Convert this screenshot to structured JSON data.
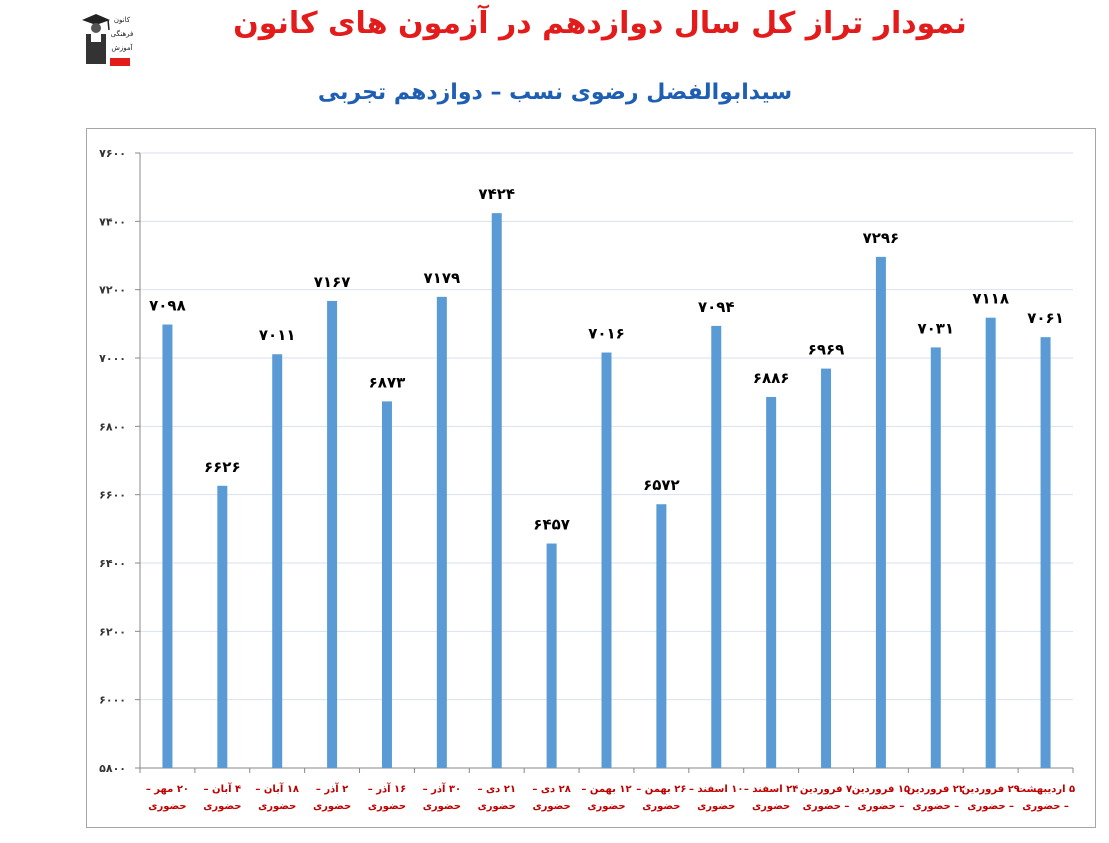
{
  "header": {
    "title": "نمودار تراز کل سال دوازدهم در آزمون های کانون",
    "subtitle": "سیدابوالفضل رضوی نسب – دوازدهم تجربی"
  },
  "logo": {
    "icon": "graduate-logo-icon",
    "texts": [
      "کانون",
      "فرهنگی",
      "آموزش"
    ]
  },
  "colors": {
    "title": "#e31b1b",
    "subtitle": "#1e5fb4",
    "bar": "#5b9bd5",
    "xlabel": "#c00000",
    "grid": "#d9e1ee"
  },
  "chart_data": {
    "type": "bar",
    "categories": [
      [
        "۲۰ مهر –",
        "حضوری"
      ],
      [
        "۴ آبان –",
        "حضوری"
      ],
      [
        "۱۸ آبان –",
        "حضوری"
      ],
      [
        "۲ آذر –",
        "حضوری"
      ],
      [
        "۱۶ آذر –",
        "حضوری"
      ],
      [
        "۳۰ آذر –",
        "حضوری"
      ],
      [
        "۲۱ دی –",
        "حضوری"
      ],
      [
        "۲۸ دی –",
        "حضوری"
      ],
      [
        "۱۲ بهمن –",
        "حضوری"
      ],
      [
        "۲۶ بهمن –",
        "حضوری"
      ],
      [
        "۱۰ اسفند –",
        "حضوری"
      ],
      [
        "۲۴ اسفند –",
        "حضوری"
      ],
      [
        "۷ فروردین",
        "– حضوری"
      ],
      [
        "۱۵ فروردین",
        "– حضوری"
      ],
      [
        "۲۲ فروردین",
        "– حضوری"
      ],
      [
        "۲۹ فروردین",
        "– حضوری"
      ],
      [
        "۵ اردیبهشت",
        "– حضوری"
      ]
    ],
    "values": [
      7098,
      6626,
      7011,
      7167,
      6873,
      7179,
      7424,
      6457,
      7016,
      6572,
      7094,
      6886,
      6969,
      7296,
      7031,
      7118,
      7061
    ],
    "value_labels": [
      "۷۰۹۸",
      "۶۶۲۶",
      "۷۰۱۱",
      "۷۱۶۷",
      "۶۸۷۳",
      "۷۱۷۹",
      "۷۴۲۴",
      "۶۴۵۷",
      "۷۰۱۶",
      "۶۵۷۲",
      "۷۰۹۴",
      "۶۸۸۶",
      "۶۹۶۹",
      "۷۲۹۶",
      "۷۰۳۱",
      "۷۱۱۸",
      "۷۰۶۱"
    ],
    "ylim": [
      5800,
      7600
    ],
    "yticks": [
      5800,
      6000,
      6200,
      6400,
      6600,
      6800,
      7000,
      7200,
      7400,
      7600
    ],
    "ytick_labels": [
      "۵۸۰۰",
      "۶۰۰۰",
      "۶۲۰۰",
      "۶۴۰۰",
      "۶۶۰۰",
      "۶۸۰۰",
      "۷۰۰۰",
      "۷۲۰۰",
      "۷۴۰۰",
      "۷۶۰۰"
    ],
    "grid": true,
    "legend": "none"
  }
}
